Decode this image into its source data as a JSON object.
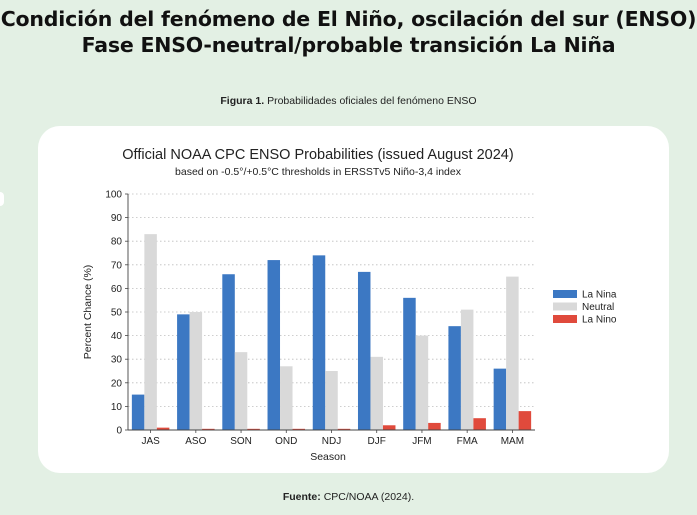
{
  "header": {
    "title_line1": "Condición del fenómeno de El Niño, oscilación del sur (ENSO)",
    "title_line2": "Fase ENSO-neutral/probable transición La Niña"
  },
  "figure": {
    "label": "Figura 1.",
    "caption": "Probabilidades oficiales del fenómeno ENSO"
  },
  "source": {
    "label": "Fuente:",
    "text": "CPC/NOAA (2024)."
  },
  "chart_data": {
    "type": "bar",
    "title": "Official NOAA CPC ENSO Probabilities (issued August 2024)",
    "subtitle": "based on -0.5°/+0.5°C thresholds in ERSSTv5 Niño-3,4 index",
    "xlabel": "Season",
    "ylabel": "Percent Chance (%)",
    "ylim": [
      0,
      100
    ],
    "yticks": [
      0,
      10,
      20,
      30,
      40,
      50,
      60,
      70,
      80,
      90,
      100
    ],
    "grid": true,
    "legend_position": "right",
    "categories": [
      "JAS",
      "ASO",
      "SON",
      "OND",
      "NDJ",
      "DJF",
      "JFM",
      "FMA",
      "MAM"
    ],
    "series": [
      {
        "name": "La Nina",
        "color": "#3c78c3",
        "values": [
          15,
          49,
          66,
          72,
          74,
          67,
          56,
          44,
          26
        ]
      },
      {
        "name": "Neutral",
        "color": "#d9d9d9",
        "values": [
          83,
          50,
          33,
          27,
          25,
          31,
          40,
          51,
          65
        ]
      },
      {
        "name": "La Nino",
        "color": "#e04a3c",
        "values": [
          1,
          0.5,
          0.5,
          0.5,
          0.5,
          2,
          3,
          5,
          8
        ]
      }
    ]
  }
}
